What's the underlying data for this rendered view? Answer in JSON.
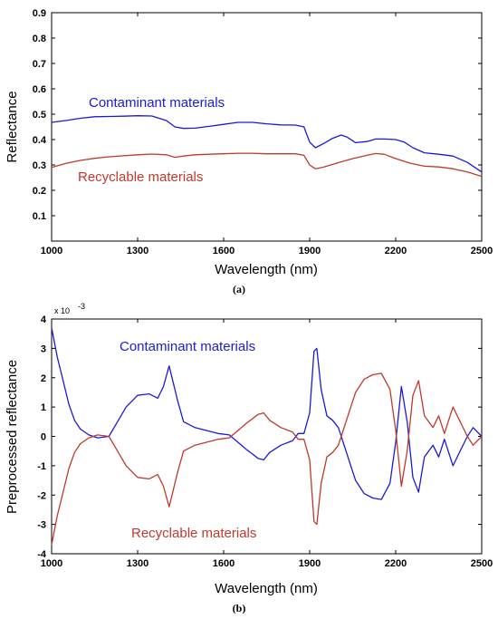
{
  "colors": {
    "contaminant": "#1a1adc",
    "recyclable": "#c0392b",
    "axis": "#000000"
  },
  "chart_data": [
    {
      "type": "line",
      "caption": "(a)",
      "xlabel": "Wavelength (nm)",
      "ylabel": "Reflectance",
      "xlim": [
        1000,
        2500
      ],
      "ylim": [
        0,
        0.9
      ],
      "xticks": [
        1000,
        1300,
        1600,
        1900,
        2200,
        2500
      ],
      "yticks": [
        0.1,
        0.2,
        0.3,
        0.4,
        0.5,
        0.6,
        0.7,
        0.8,
        0.9
      ],
      "ytick_labels": [
        "0.1",
        "0.2",
        "0.3",
        "0.4",
        "0.5",
        "0.6",
        "0.7",
        "0.8",
        "0.9"
      ],
      "series": [
        {
          "name": "Contaminant materials",
          "color": "#1a1adc",
          "x": [
            1000,
            1050,
            1100,
            1150,
            1200,
            1250,
            1300,
            1350,
            1400,
            1430,
            1460,
            1500,
            1550,
            1600,
            1650,
            1700,
            1750,
            1800,
            1850,
            1880,
            1900,
            1920,
            1950,
            1980,
            2010,
            2030,
            2060,
            2100,
            2130,
            2160,
            2200,
            2230,
            2260,
            2300,
            2350,
            2400,
            2450,
            2500
          ],
          "y": [
            0.468,
            0.475,
            0.484,
            0.49,
            0.491,
            0.492,
            0.494,
            0.493,
            0.475,
            0.45,
            0.444,
            0.445,
            0.452,
            0.46,
            0.468,
            0.468,
            0.462,
            0.458,
            0.457,
            0.45,
            0.39,
            0.368,
            0.385,
            0.405,
            0.418,
            0.41,
            0.388,
            0.392,
            0.402,
            0.402,
            0.4,
            0.39,
            0.368,
            0.348,
            0.342,
            0.335,
            0.31,
            0.272
          ]
        },
        {
          "name": "Recyclable materials",
          "color": "#c0392b",
          "x": [
            1000,
            1050,
            1100,
            1150,
            1200,
            1250,
            1300,
            1350,
            1400,
            1430,
            1460,
            1500,
            1550,
            1600,
            1650,
            1700,
            1750,
            1800,
            1850,
            1880,
            1900,
            1920,
            1950,
            1980,
            2010,
            2050,
            2100,
            2130,
            2160,
            2200,
            2250,
            2300,
            2350,
            2400,
            2450,
            2500
          ],
          "y": [
            0.29,
            0.306,
            0.318,
            0.326,
            0.332,
            0.336,
            0.34,
            0.343,
            0.34,
            0.33,
            0.335,
            0.34,
            0.342,
            0.344,
            0.346,
            0.346,
            0.344,
            0.344,
            0.344,
            0.338,
            0.3,
            0.285,
            0.292,
            0.302,
            0.312,
            0.325,
            0.338,
            0.345,
            0.342,
            0.325,
            0.307,
            0.295,
            0.292,
            0.285,
            0.272,
            0.255
          ]
        }
      ]
    },
    {
      "type": "line",
      "caption": "(b)",
      "xlabel": "Wavelength (nm)",
      "ylabel": "Preprocessed reflectance",
      "y_multiplier": "x 10",
      "y_multiplier_exp": "-3",
      "xlim": [
        1000,
        2500
      ],
      "ylim": [
        -4,
        4
      ],
      "xticks": [
        1000,
        1300,
        1600,
        1900,
        2200,
        2500
      ],
      "yticks": [
        -4,
        -3,
        -2,
        -1,
        0,
        1,
        2,
        3,
        4
      ],
      "ytick_labels": [
        "-4",
        "-3",
        "-2",
        "-1",
        "0",
        "1",
        "2",
        "3",
        "4"
      ],
      "series": [
        {
          "name": "Contaminant materials",
          "color": "#1a1adc",
          "x": [
            1000,
            1020,
            1040,
            1060,
            1080,
            1100,
            1130,
            1160,
            1200,
            1230,
            1260,
            1300,
            1340,
            1370,
            1390,
            1410,
            1420,
            1440,
            1460,
            1500,
            1540,
            1580,
            1620,
            1650,
            1680,
            1700,
            1720,
            1740,
            1760,
            1800,
            1840,
            1860,
            1880,
            1900,
            1915,
            1925,
            1940,
            1960,
            1980,
            2000,
            2030,
            2060,
            2090,
            2120,
            2150,
            2180,
            2200,
            2220,
            2240,
            2260,
            2280,
            2300,
            2330,
            2350,
            2370,
            2400,
            2430,
            2450,
            2470,
            2500
          ],
          "y": [
            3.7,
            2.7,
            1.9,
            1.1,
            0.55,
            0.25,
            0.05,
            -0.05,
            0.0,
            0.5,
            1.0,
            1.4,
            1.45,
            1.3,
            1.7,
            2.4,
            2.0,
            1.2,
            0.5,
            0.3,
            0.2,
            0.1,
            0.05,
            -0.2,
            -0.45,
            -0.6,
            -0.75,
            -0.8,
            -0.55,
            -0.3,
            -0.15,
            0.1,
            0.1,
            0.8,
            2.9,
            3.0,
            1.6,
            0.7,
            0.55,
            0.3,
            -0.6,
            -1.5,
            -1.95,
            -2.1,
            -2.15,
            -1.6,
            -0.2,
            1.7,
            0.5,
            -1.4,
            -1.9,
            -0.7,
            -0.3,
            -0.7,
            -0.1,
            -1.0,
            -0.4,
            0.0,
            0.3,
            0.0
          ]
        },
        {
          "name": "Recyclable materials",
          "color": "#c0392b",
          "x": [
            1000,
            1020,
            1040,
            1060,
            1080,
            1100,
            1130,
            1160,
            1200,
            1230,
            1260,
            1300,
            1340,
            1370,
            1390,
            1410,
            1420,
            1440,
            1460,
            1500,
            1540,
            1580,
            1620,
            1650,
            1680,
            1700,
            1720,
            1740,
            1760,
            1800,
            1840,
            1860,
            1880,
            1900,
            1915,
            1925,
            1940,
            1960,
            1980,
            2000,
            2030,
            2060,
            2090,
            2120,
            2150,
            2180,
            2200,
            2220,
            2240,
            2260,
            2280,
            2300,
            2330,
            2350,
            2370,
            2400,
            2430,
            2450,
            2470,
            2500
          ],
          "y": [
            -3.7,
            -2.7,
            -1.9,
            -1.1,
            -0.55,
            -0.25,
            -0.05,
            0.05,
            0.0,
            -0.5,
            -1.0,
            -1.4,
            -1.45,
            -1.3,
            -1.7,
            -2.4,
            -2.0,
            -1.2,
            -0.5,
            -0.3,
            -0.2,
            -0.1,
            -0.05,
            0.2,
            0.45,
            0.6,
            0.75,
            0.8,
            0.55,
            0.3,
            0.15,
            -0.1,
            -0.1,
            -0.8,
            -2.9,
            -3.0,
            -1.6,
            -0.7,
            -0.55,
            -0.3,
            0.6,
            1.5,
            1.95,
            2.1,
            2.15,
            1.6,
            0.2,
            -1.7,
            -0.5,
            1.4,
            1.9,
            0.7,
            0.3,
            0.7,
            0.1,
            1.0,
            0.4,
            0.0,
            -0.3,
            0.0
          ]
        }
      ]
    }
  ]
}
